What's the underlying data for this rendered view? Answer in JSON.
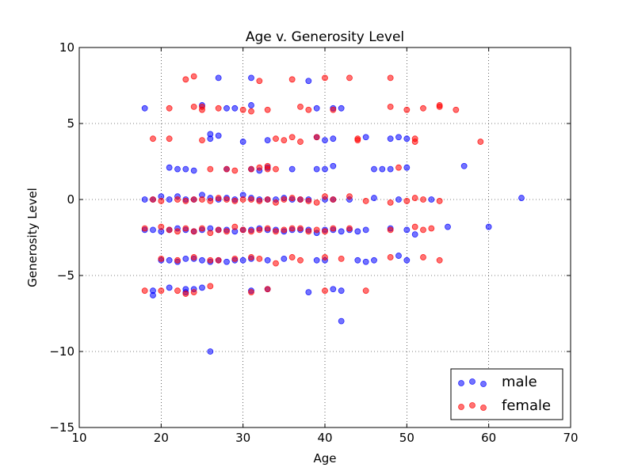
{
  "chart_data": {
    "type": "scatter",
    "title": "Age v. Generosity Level",
    "xlabel": "Age",
    "ylabel": "Generosity Level",
    "xlim": [
      10,
      70
    ],
    "ylim": [
      -15,
      10
    ],
    "xticks": [
      10,
      20,
      30,
      40,
      50,
      60,
      70
    ],
    "yticks": [
      -15,
      -10,
      -5,
      0,
      5,
      10
    ],
    "xtick_labels": [
      "10",
      "20",
      "30",
      "40",
      "50",
      "60",
      "70"
    ],
    "ytick_labels": [
      "−15",
      "−10",
      "−5",
      "0",
      "5",
      "10"
    ],
    "grid": true,
    "legend_position": "lower-right",
    "series": [
      {
        "name": "male",
        "color": "#0000ff",
        "points": [
          [
            18,
            6
          ],
          [
            27,
            8
          ],
          [
            31,
            8
          ],
          [
            38,
            7.8
          ],
          [
            25,
            6.2
          ],
          [
            28,
            6
          ],
          [
            29,
            6
          ],
          [
            31,
            6.2
          ],
          [
            39,
            6
          ],
          [
            41,
            6
          ],
          [
            42,
            6
          ],
          [
            26,
            4.3
          ],
          [
            26,
            4
          ],
          [
            27,
            4.2
          ],
          [
            30,
            3.8
          ],
          [
            33,
            3.9
          ],
          [
            39,
            4.1
          ],
          [
            40,
            3.9
          ],
          [
            41,
            4
          ],
          [
            45,
            4.1
          ],
          [
            48,
            4
          ],
          [
            49,
            4.1
          ],
          [
            50,
            4
          ],
          [
            21,
            2.1
          ],
          [
            22,
            2
          ],
          [
            23,
            2
          ],
          [
            24,
            1.9
          ],
          [
            28,
            2
          ],
          [
            31,
            2
          ],
          [
            32,
            1.9
          ],
          [
            33,
            2.1
          ],
          [
            36,
            2
          ],
          [
            39,
            2
          ],
          [
            40,
            2
          ],
          [
            41,
            2.2
          ],
          [
            46,
            2
          ],
          [
            47,
            2
          ],
          [
            48,
            2
          ],
          [
            50,
            2.1
          ],
          [
            57,
            2.2
          ],
          [
            18,
            0
          ],
          [
            19,
            0
          ],
          [
            20,
            0.2
          ],
          [
            21,
            0
          ],
          [
            22,
            0.2
          ],
          [
            23,
            0
          ],
          [
            24,
            0
          ],
          [
            25,
            0.3
          ],
          [
            26,
            0.1
          ],
          [
            27,
            0
          ],
          [
            28,
            0.1
          ],
          [
            29,
            0
          ],
          [
            30,
            0.3
          ],
          [
            31,
            0.1
          ],
          [
            32,
            0
          ],
          [
            33,
            0
          ],
          [
            34,
            0
          ],
          [
            35,
            0.1
          ],
          [
            36,
            0
          ],
          [
            37,
            0
          ],
          [
            38,
            0
          ],
          [
            40,
            0
          ],
          [
            41,
            0
          ],
          [
            43,
            0
          ],
          [
            46,
            0.1
          ],
          [
            49,
            0
          ],
          [
            53,
            0
          ],
          [
            64,
            0.1
          ],
          [
            18,
            -2
          ],
          [
            19,
            -2
          ],
          [
            20,
            -2.1
          ],
          [
            21,
            -2
          ],
          [
            22,
            -1.9
          ],
          [
            23,
            -2
          ],
          [
            24,
            -2.1
          ],
          [
            25,
            -2
          ],
          [
            26,
            -1.9
          ],
          [
            27,
            -2
          ],
          [
            28,
            -2
          ],
          [
            29,
            -2.1
          ],
          [
            30,
            -2
          ],
          [
            31,
            -2
          ],
          [
            32,
            -1.9
          ],
          [
            33,
            -2
          ],
          [
            34,
            -2
          ],
          [
            35,
            -2.1
          ],
          [
            36,
            -2
          ],
          [
            37,
            -2
          ],
          [
            38,
            -2
          ],
          [
            39,
            -2.2
          ],
          [
            40,
            -2
          ],
          [
            41,
            -2
          ],
          [
            42,
            -2.1
          ],
          [
            43,
            -2
          ],
          [
            44,
            -2.1
          ],
          [
            45,
            -2
          ],
          [
            48,
            -1.9
          ],
          [
            50,
            -2
          ],
          [
            51,
            -2.3
          ],
          [
            55,
            -1.8
          ],
          [
            60,
            -1.8
          ],
          [
            20,
            -4
          ],
          [
            21,
            -4
          ],
          [
            22,
            -4.1
          ],
          [
            23,
            -3.9
          ],
          [
            24,
            -3.9
          ],
          [
            25,
            -4
          ],
          [
            26,
            -4.1
          ],
          [
            27,
            -4
          ],
          [
            28,
            -4.1
          ],
          [
            29,
            -4
          ],
          [
            30,
            -4
          ],
          [
            31,
            -3.9
          ],
          [
            33,
            -4
          ],
          [
            35,
            -3.9
          ],
          [
            39,
            -4
          ],
          [
            40,
            -4
          ],
          [
            44,
            -4
          ],
          [
            45,
            -4.1
          ],
          [
            46,
            -4
          ],
          [
            49,
            -3.7
          ],
          [
            50,
            -4
          ],
          [
            19,
            -6
          ],
          [
            19,
            -6.3
          ],
          [
            21,
            -5.8
          ],
          [
            23,
            -5.9
          ],
          [
            23,
            -6.1
          ],
          [
            24,
            -5.9
          ],
          [
            25,
            -5.8
          ],
          [
            31,
            -6
          ],
          [
            33,
            -5.9
          ],
          [
            38,
            -6.1
          ],
          [
            41,
            -5.9
          ],
          [
            42,
            -6
          ],
          [
            42,
            -8
          ],
          [
            26,
            -10
          ]
        ]
      },
      {
        "name": "female",
        "color": "#ff0000",
        "points": [
          [
            23,
            7.9
          ],
          [
            24,
            8.1
          ],
          [
            32,
            7.8
          ],
          [
            36,
            7.9
          ],
          [
            40,
            8
          ],
          [
            43,
            8
          ],
          [
            48,
            8
          ],
          [
            21,
            6
          ],
          [
            24,
            6.1
          ],
          [
            25,
            6.1
          ],
          [
            25,
            5.9
          ],
          [
            27,
            6
          ],
          [
            30,
            5.9
          ],
          [
            31,
            5.8
          ],
          [
            33,
            5.9
          ],
          [
            37,
            6.1
          ],
          [
            38,
            5.9
          ],
          [
            41,
            5.9
          ],
          [
            48,
            6.1
          ],
          [
            50,
            5.9
          ],
          [
            52,
            6
          ],
          [
            54,
            6.1
          ],
          [
            54,
            6.2
          ],
          [
            56,
            5.9
          ],
          [
            19,
            4
          ],
          [
            21,
            4
          ],
          [
            25,
            3.9
          ],
          [
            34,
            4
          ],
          [
            35,
            3.9
          ],
          [
            36,
            4.1
          ],
          [
            37,
            3.8
          ],
          [
            39,
            4.1
          ],
          [
            44,
            3.9
          ],
          [
            44,
            4
          ],
          [
            51,
            4
          ],
          [
            51,
            3.8
          ],
          [
            59,
            3.8
          ],
          [
            26,
            2
          ],
          [
            28,
            2
          ],
          [
            29,
            1.9
          ],
          [
            31,
            2
          ],
          [
            32,
            2.1
          ],
          [
            33,
            2.2
          ],
          [
            33,
            2
          ],
          [
            34,
            2
          ],
          [
            49,
            2.1
          ],
          [
            19,
            0
          ],
          [
            20,
            -0.1
          ],
          [
            22,
            0
          ],
          [
            23,
            -0.1
          ],
          [
            24,
            0
          ],
          [
            25,
            0
          ],
          [
            26,
            -0.1
          ],
          [
            27,
            0.1
          ],
          [
            28,
            0
          ],
          [
            29,
            -0.1
          ],
          [
            30,
            0
          ],
          [
            31,
            0
          ],
          [
            32,
            -0.1
          ],
          [
            33,
            0
          ],
          [
            34,
            -0.2
          ],
          [
            35,
            0
          ],
          [
            36,
            0.1
          ],
          [
            37,
            0
          ],
          [
            38,
            -0.1
          ],
          [
            39,
            -0.2
          ],
          [
            40,
            0.2
          ],
          [
            41,
            0
          ],
          [
            43,
            0.2
          ],
          [
            45,
            -0.1
          ],
          [
            48,
            -0.2
          ],
          [
            50,
            -0.1
          ],
          [
            51,
            0.1
          ],
          [
            52,
            0
          ],
          [
            54,
            -0.1
          ],
          [
            18,
            -1.9
          ],
          [
            20,
            -1.8
          ],
          [
            21,
            -2
          ],
          [
            22,
            -2.1
          ],
          [
            23,
            -1.9
          ],
          [
            24,
            -2.1
          ],
          [
            25,
            -1.9
          ],
          [
            26,
            -2.2
          ],
          [
            27,
            -2
          ],
          [
            28,
            -2.1
          ],
          [
            29,
            -1.8
          ],
          [
            30,
            -2
          ],
          [
            31,
            -2.1
          ],
          [
            32,
            -2
          ],
          [
            33,
            -1.9
          ],
          [
            34,
            -2.1
          ],
          [
            35,
            -2
          ],
          [
            36,
            -1.9
          ],
          [
            37,
            -1.9
          ],
          [
            38,
            -2.1
          ],
          [
            39,
            -2
          ],
          [
            40,
            -2.1
          ],
          [
            41,
            -1.9
          ],
          [
            43,
            -1.9
          ],
          [
            48,
            -2
          ],
          [
            51,
            -1.8
          ],
          [
            52,
            -2
          ],
          [
            53,
            -1.9
          ],
          [
            20,
            -3.9
          ],
          [
            22,
            -4
          ],
          [
            24,
            -3.8
          ],
          [
            26,
            -4
          ],
          [
            27,
            -4
          ],
          [
            29,
            -3.9
          ],
          [
            31,
            -3.8
          ],
          [
            32,
            -3.9
          ],
          [
            34,
            -4.2
          ],
          [
            36,
            -3.8
          ],
          [
            37,
            -4
          ],
          [
            40,
            -3.8
          ],
          [
            42,
            -3.9
          ],
          [
            48,
            -3.8
          ],
          [
            52,
            -3.8
          ],
          [
            54,
            -4
          ],
          [
            18,
            -6
          ],
          [
            20,
            -6
          ],
          [
            22,
            -6
          ],
          [
            23,
            -6.2
          ],
          [
            24,
            -6.1
          ],
          [
            26,
            -5.7
          ],
          [
            31,
            -6.1
          ],
          [
            33,
            -5.9
          ],
          [
            40,
            -6
          ],
          [
            45,
            -6
          ]
        ]
      }
    ]
  }
}
